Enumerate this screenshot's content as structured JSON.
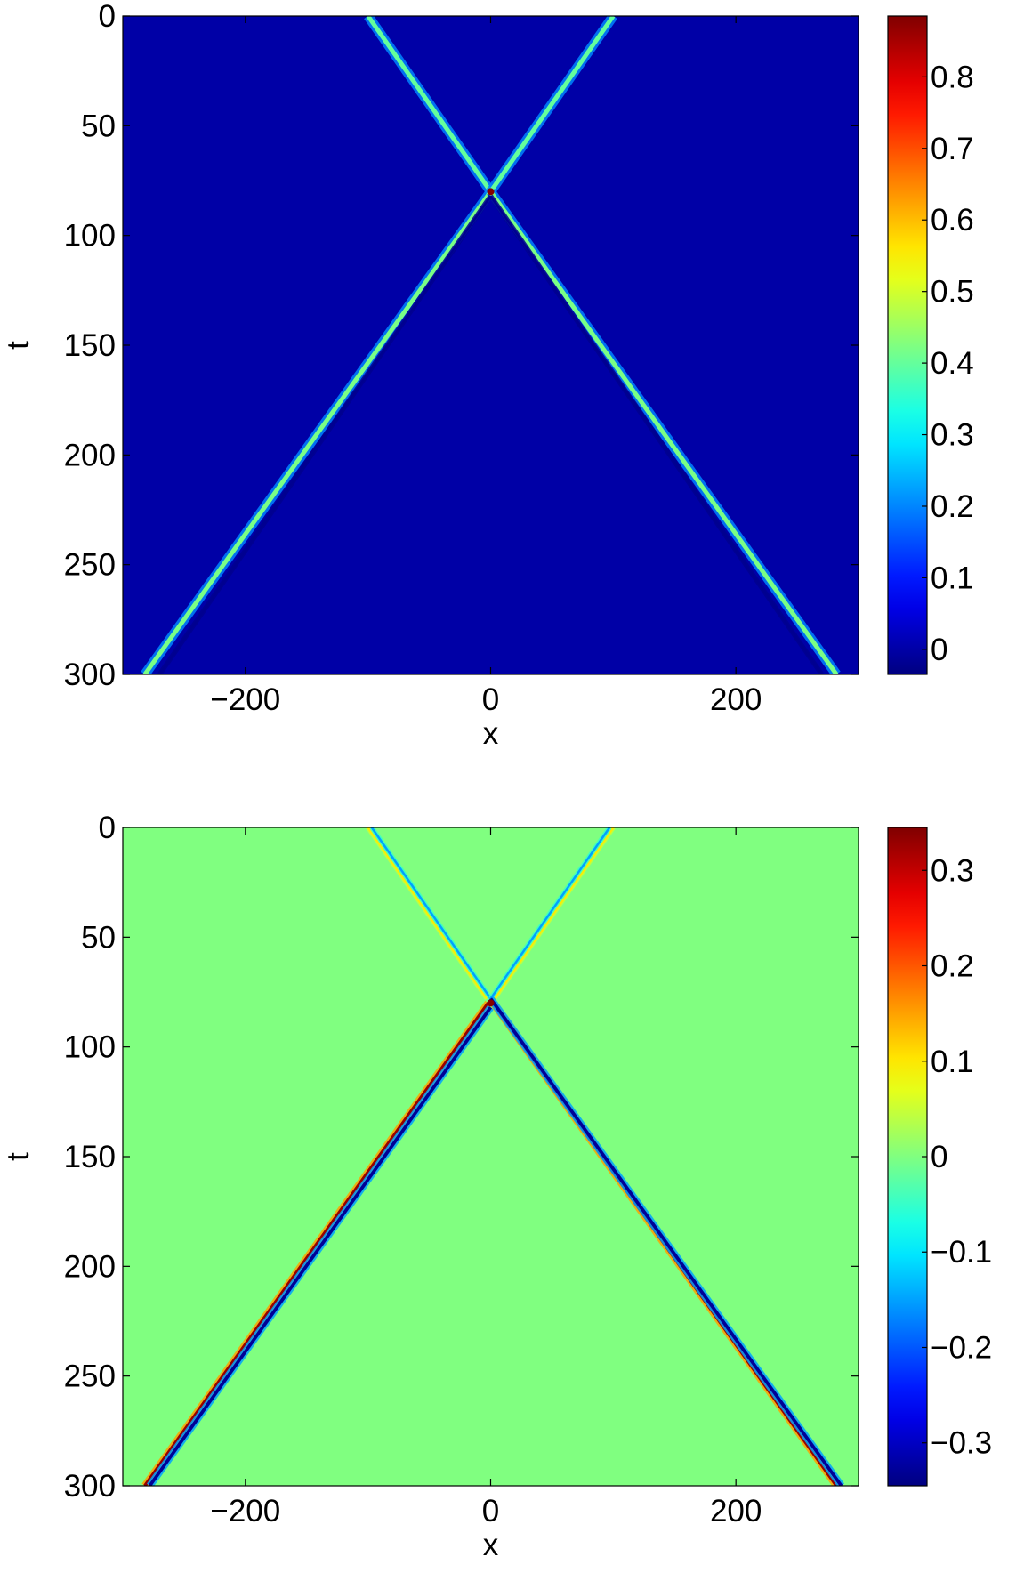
{
  "chart_data": [
    {
      "type": "heatmap",
      "title": "",
      "xlabel": "x",
      "ylabel": "t",
      "xlim": [
        -300,
        300
      ],
      "ylim": [
        0,
        300
      ],
      "y_reversed": true,
      "x_ticks": [
        -200,
        0,
        200
      ],
      "x_tick_labels": [
        "−200",
        "0",
        "200"
      ],
      "y_ticks": [
        0,
        50,
        100,
        150,
        200,
        250,
        300
      ],
      "y_tick_labels": [
        "0",
        "50",
        "100",
        "150",
        "200",
        "250",
        "300"
      ],
      "colormap": "jet",
      "background_value": 0,
      "color_range": [
        -0.035,
        0.885
      ],
      "colorbar_ticks": [
        0,
        0.1,
        0.2,
        0.3,
        0.4,
        0.5,
        0.6,
        0.7,
        0.8
      ],
      "colorbar_tick_labels": [
        "0",
        "0.1",
        "0.2",
        "0.3",
        "0.4",
        "0.5",
        "0.6",
        "0.7",
        "0.8"
      ],
      "features": [
        {
          "kind": "line",
          "x0": -100,
          "t0": 0,
          "x1": 0,
          "t1": 80,
          "value": 0.4,
          "halo_value": 0.2,
          "halo_width": 2.0
        },
        {
          "kind": "line",
          "x0": 100,
          "t0": 0,
          "x1": 0,
          "t1": 80,
          "value": 0.4,
          "halo_value": 0.2,
          "halo_width": 2.0
        },
        {
          "kind": "line",
          "x0": 0,
          "t0": 80,
          "x1": -282,
          "t1": 300,
          "value": 0.42,
          "halo_value": 0.2,
          "halo_width": 2.0
        },
        {
          "kind": "line",
          "x0": 0,
          "t0": 80,
          "x1": 282,
          "t1": 300,
          "value": 0.42,
          "halo_value": 0.2,
          "halo_width": 2.0
        },
        {
          "kind": "line",
          "x0": 0,
          "t0": 82,
          "x1": -270,
          "t1": 300,
          "value": -0.02,
          "halo_value": -0.02,
          "halo_width": 1.0
        },
        {
          "kind": "line",
          "x0": 0,
          "t0": 82,
          "x1": 270,
          "t1": 300,
          "value": -0.02,
          "halo_value": -0.02,
          "halo_width": 1.0
        },
        {
          "kind": "point",
          "x": 0,
          "t": 80,
          "value": 0.88
        }
      ]
    },
    {
      "type": "heatmap",
      "title": "",
      "xlabel": "x",
      "ylabel": "t",
      "xlim": [
        -300,
        300
      ],
      "ylim": [
        0,
        300
      ],
      "y_reversed": true,
      "x_ticks": [
        -200,
        0,
        200
      ],
      "x_tick_labels": [
        "−200",
        "0",
        "200"
      ],
      "y_ticks": [
        0,
        50,
        100,
        150,
        200,
        250,
        300
      ],
      "y_tick_labels": [
        "0",
        "50",
        "100",
        "150",
        "200",
        "250",
        "300"
      ],
      "colormap": "jet",
      "background_value": 0,
      "color_range": [
        -0.345,
        0.345
      ],
      "colorbar_ticks": [
        -0.3,
        -0.2,
        -0.1,
        0,
        0.1,
        0.2,
        0.3
      ],
      "colorbar_tick_labels": [
        "−0.3",
        "−0.2",
        "−0.1",
        "0",
        "0.1",
        "0.2",
        "0.3"
      ],
      "features": [
        {
          "kind": "line",
          "x0": -100,
          "t0": 0,
          "x1": -3,
          "t1": 78,
          "value": 0.1,
          "halo_value": 0.05,
          "halo_width": 1.0
        },
        {
          "kind": "line",
          "x0": -97,
          "t0": 0,
          "x1": 0,
          "t1": 78,
          "value": -0.15,
          "halo_value": -0.05,
          "halo_width": 1.0
        },
        {
          "kind": "line",
          "x0": 100,
          "t0": 0,
          "x1": 3,
          "t1": 78,
          "value": 0.1,
          "halo_value": 0.05,
          "halo_width": 1.0
        },
        {
          "kind": "line",
          "x0": 97,
          "t0": 0,
          "x1": 0,
          "t1": 78,
          "value": -0.15,
          "halo_value": -0.05,
          "halo_width": 1.0
        },
        {
          "kind": "line",
          "x0": -2,
          "t0": 80,
          "x1": -282,
          "t1": 300,
          "value": 0.33,
          "halo_value": 0.15,
          "halo_width": 1.5
        },
        {
          "kind": "line",
          "x0": 0,
          "t0": 82,
          "x1": -278,
          "t1": 300,
          "value": -0.33,
          "halo_value": -0.15,
          "halo_width": 1.5
        },
        {
          "kind": "line",
          "x0": 2,
          "t0": 80,
          "x1": 282,
          "t1": 300,
          "value": 0.33,
          "halo_value": 0.15,
          "halo_width": 1.5
        },
        {
          "kind": "line",
          "x0": 0,
          "t0": 78,
          "x1": 286,
          "t1": 300,
          "value": -0.33,
          "halo_value": -0.15,
          "halo_width": 1.5
        },
        {
          "kind": "point",
          "x": 0,
          "t": 80,
          "value": 0.34
        }
      ]
    }
  ]
}
